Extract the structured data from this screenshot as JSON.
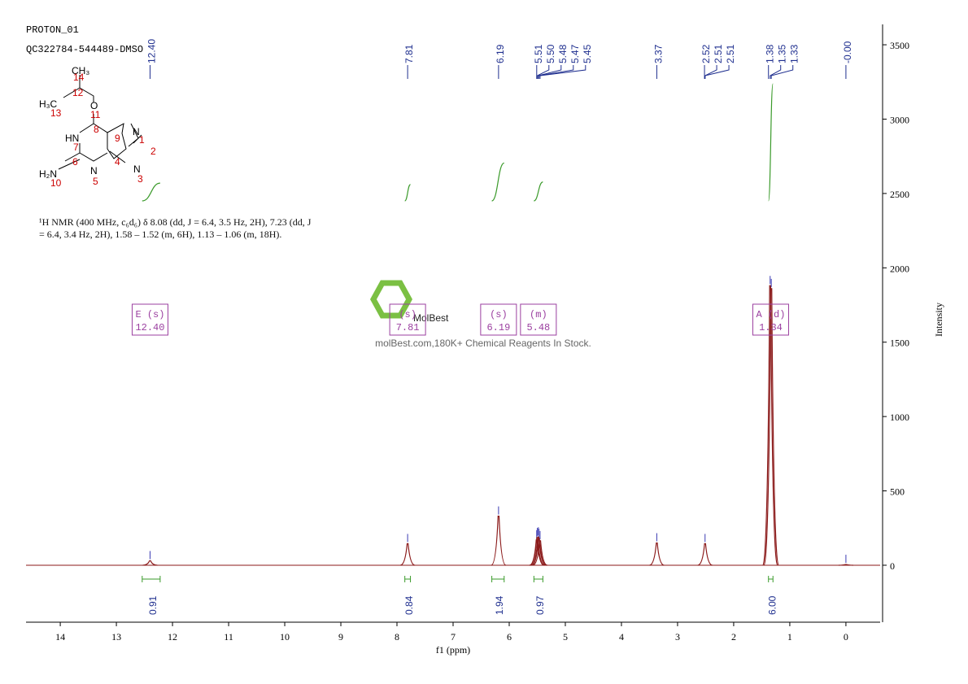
{
  "chart_data": {
    "type": "nmr",
    "header": [
      "PROTON_01",
      "QC322784-544489-DMSO"
    ],
    "description": "¹H NMR (400 MHz, c₆d₆) δ 8.08 (dd, J = 6.4, 3.5 Hz, 2H), 7.23 (dd, J = 6.4, 3.4 Hz, 2H), 1.58 – 1.52 (m, 6H), 1.13 – 1.06 (m, 18H).",
    "structure": [
      "CH₃",
      "14",
      "12",
      "H₃C",
      "13",
      "O",
      "11",
      "HN",
      "7",
      "8",
      "9",
      "N",
      "1",
      "2",
      "4",
      "6",
      "N",
      "3",
      "H₂N",
      "10",
      "N",
      "5"
    ],
    "xlabel": "f1 (ppm)",
    "ylabel": "Intensity",
    "xlim": [
      14.61,
      -0.61
    ],
    "xticks": [
      14,
      13,
      12,
      11,
      10,
      9,
      8,
      7,
      6,
      5,
      4,
      3,
      2,
      1,
      0
    ],
    "ylim": [
      -383,
      3637
    ],
    "yticks": [
      0,
      500,
      1000,
      1500,
      2000,
      2500,
      3000,
      3500
    ],
    "color": "#8b1a1a",
    "peaks": {
      "x": [
        12.4,
        7.81,
        6.19,
        5.51,
        5.5,
        5.48,
        5.47,
        5.45,
        3.37,
        2.51,
        1.35,
        1.33,
        0
      ],
      "values": [
        30,
        145,
        330,
        170,
        185,
        190,
        180,
        165,
        150,
        145,
        1880,
        1860,
        5
      ]
    },
    "peak_labels": [
      {
        "value": 12.4,
        "label": "12.40"
      },
      7.81,
      6.19,
      5.51,
      {
        "value": 5.5,
        "label": "5.50"
      },
      5.48,
      5.47,
      5.45,
      3.37,
      2.52,
      2.51,
      2.51,
      1.38,
      1.35,
      1.33,
      {
        "value": 0,
        "label": "-0.00"
      }
    ],
    "integrals": {
      "ranges": [
        [
          12.54,
          12.22
        ],
        [
          7.86,
          7.76
        ],
        [
          6.31,
          6.09
        ],
        [
          5.56,
          5.4
        ],
        [
          1.38,
          1.3
        ]
      ],
      "values": [
        0.91,
        0.84,
        1.94,
        0.97,
        6
      ],
      "value_labels": [
        "0.91",
        "0.84",
        "1.94",
        "0.97",
        "6.00"
      ]
    },
    "multiplets": [
      {
        "name": "E (s)",
        "shift": {
          "value": 12.4,
          "label": "12.40"
        }
      },
      {
        "name": "(s)",
        "shift": 7.81
      },
      {
        "name": "(s)",
        "shift": 6.19
      },
      {
        "name": "(m)",
        "shift": 5.48
      },
      {
        "name": "A (d)",
        "shift": 1.34
      }
    ],
    "watermark": [
      "MolBest",
      "molBest.com,180K+ Chemical Reagents In Stock."
    ]
  }
}
